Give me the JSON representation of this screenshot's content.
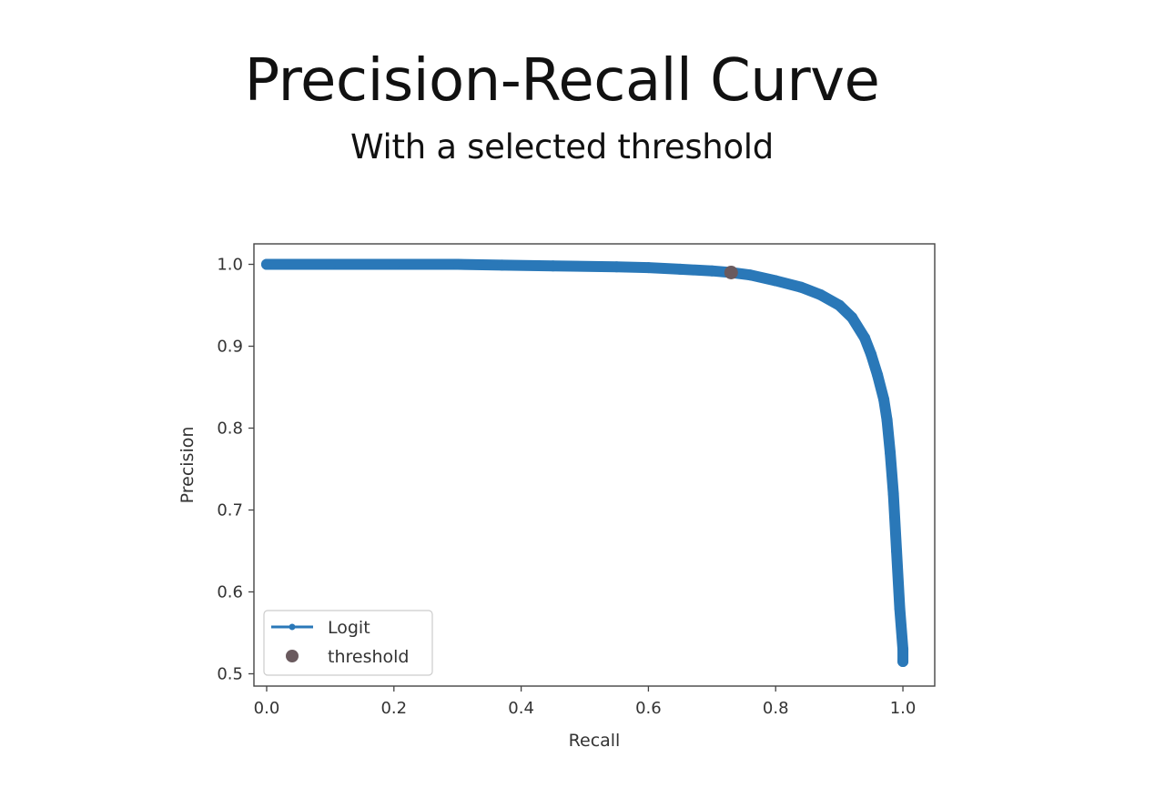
{
  "slide": {
    "title": "Precision-Recall Curve",
    "subtitle": "With a selected threshold"
  },
  "colors": {
    "series": "#2a78b8",
    "threshold": "#6a5a5e",
    "frame": "#444444"
  },
  "chart_data": {
    "type": "line",
    "xlabel": "Recall",
    "ylabel": "Precision",
    "xlim": [
      -0.02,
      1.05
    ],
    "ylim": [
      0.485,
      1.025
    ],
    "xticks": [
      "0.0",
      "0.2",
      "0.4",
      "0.6",
      "0.8",
      "1.0"
    ],
    "yticks": [
      "0.5",
      "0.6",
      "0.7",
      "0.8",
      "0.9",
      "1.0"
    ],
    "grid": false,
    "legend_position": "lower-left",
    "series": [
      {
        "name": "Logit",
        "marker": "dot",
        "x": [
          0.0,
          0.1,
          0.2,
          0.3,
          0.37,
          0.45,
          0.55,
          0.6,
          0.65,
          0.7,
          0.73,
          0.76,
          0.8,
          0.84,
          0.87,
          0.9,
          0.92,
          0.94,
          0.95,
          0.96,
          0.97,
          0.975,
          0.98,
          0.985,
          0.99,
          0.995,
          1.0,
          1.0
        ],
        "y": [
          1.0,
          1.0,
          1.0,
          1.0,
          0.999,
          0.998,
          0.997,
          0.996,
          0.994,
          0.992,
          0.99,
          0.987,
          0.98,
          0.972,
          0.963,
          0.95,
          0.935,
          0.91,
          0.89,
          0.865,
          0.835,
          0.81,
          0.77,
          0.72,
          0.65,
          0.58,
          0.53,
          0.515
        ]
      },
      {
        "name": "threshold",
        "marker": "dot",
        "x": [
          0.73
        ],
        "y": [
          0.99
        ]
      }
    ]
  }
}
